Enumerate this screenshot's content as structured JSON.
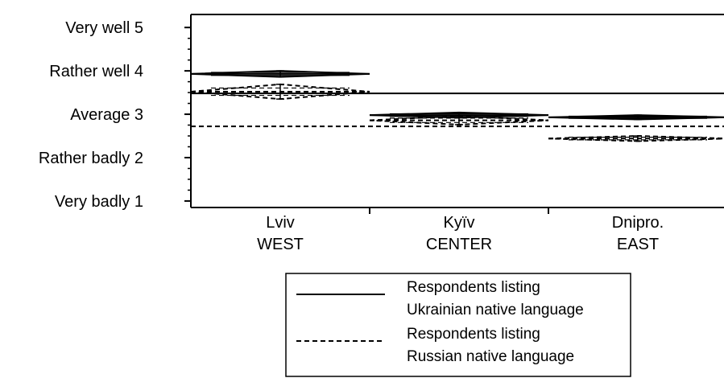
{
  "chart_data": {
    "type": "diamond",
    "ylim": [
      0.85,
      5.3
    ],
    "y_ticks": [
      {
        "value": 5,
        "label": "Very well  5"
      },
      {
        "value": 4,
        "label": "Rather well  4"
      },
      {
        "value": 3,
        "label": "Average  3"
      },
      {
        "value": 2,
        "label": "Rather badly  2"
      },
      {
        "value": 1,
        "label": "Very badly  1"
      }
    ],
    "categories": [
      {
        "line1": "Lviv",
        "line2": "WEST"
      },
      {
        "line1": "Kyïv",
        "line2": "CENTER"
      },
      {
        "line1": "Dnipro.",
        "line2": "EAST"
      }
    ],
    "series": [
      {
        "style": "solid",
        "means": [
          3.93,
          2.98,
          2.93
        ],
        "half_widths": [
          0.07,
          0.06,
          0.05
        ],
        "grand_mean": 3.48
      },
      {
        "style": "dashed",
        "means": [
          3.52,
          2.86,
          2.44
        ],
        "half_widths": [
          0.17,
          0.1,
          0.06
        ],
        "grand_mean": 2.72
      }
    ],
    "legend": [
      {
        "style": "solid",
        "line1": "Respondents listing",
        "line2": "Ukrainian native language"
      },
      {
        "style": "dashed",
        "line1": "Respondents listing",
        "line2": "Russian native language"
      }
    ],
    "legend_position": "bottom-right"
  }
}
